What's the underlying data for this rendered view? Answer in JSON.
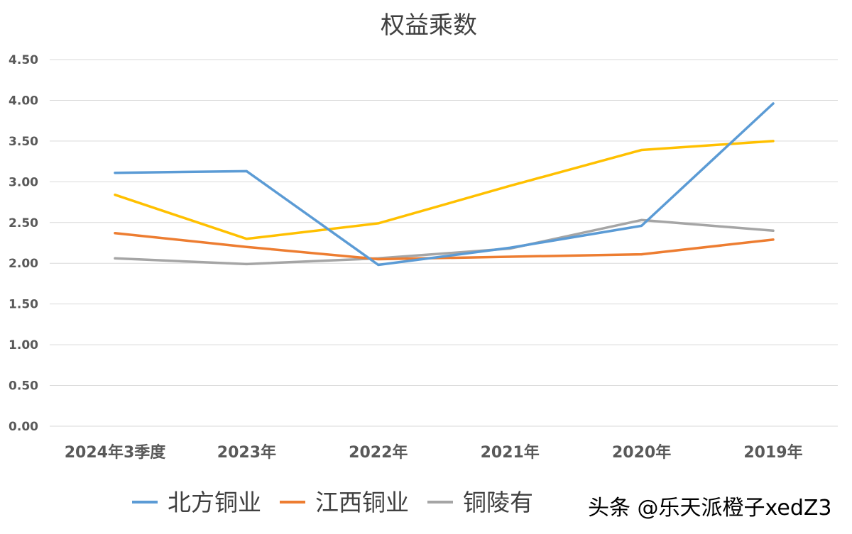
{
  "chart_data": {
    "type": "line",
    "title": "权益乘数",
    "xlabel": "",
    "ylabel": "",
    "categories": [
      "2024年3季度",
      "2023年",
      "2022年",
      "2021年",
      "2020年",
      "2019年"
    ],
    "ylim": [
      0,
      4.5
    ],
    "yticks": [
      "0.00",
      "0.50",
      "1.00",
      "1.50",
      "2.00",
      "2.50",
      "3.00",
      "3.50",
      "4.00",
      "4.50"
    ],
    "grid": true,
    "legend_position": "bottom",
    "series": [
      {
        "name": "北方铜业",
        "color": "#5b9bd5",
        "values": [
          3.11,
          3.13,
          1.98,
          2.19,
          2.46,
          3.96
        ]
      },
      {
        "name": "江西铜业",
        "color": "#ed7d31",
        "values": [
          2.37,
          2.2,
          2.05,
          2.08,
          2.11,
          2.29
        ]
      },
      {
        "name": "铜陵有色",
        "color": "#a5a5a5",
        "values": [
          2.06,
          1.99,
          2.06,
          2.18,
          2.53,
          2.4
        ]
      },
      {
        "color": "#ffc000",
        "values": [
          2.84,
          2.3,
          2.49,
          2.95,
          3.39,
          3.5
        ]
      }
    ],
    "legend_visible_text": [
      "北方铜业",
      "江西铜业",
      "铜陵有"
    ]
  },
  "watermark": "头条 @乐天派橙子xedZ3"
}
